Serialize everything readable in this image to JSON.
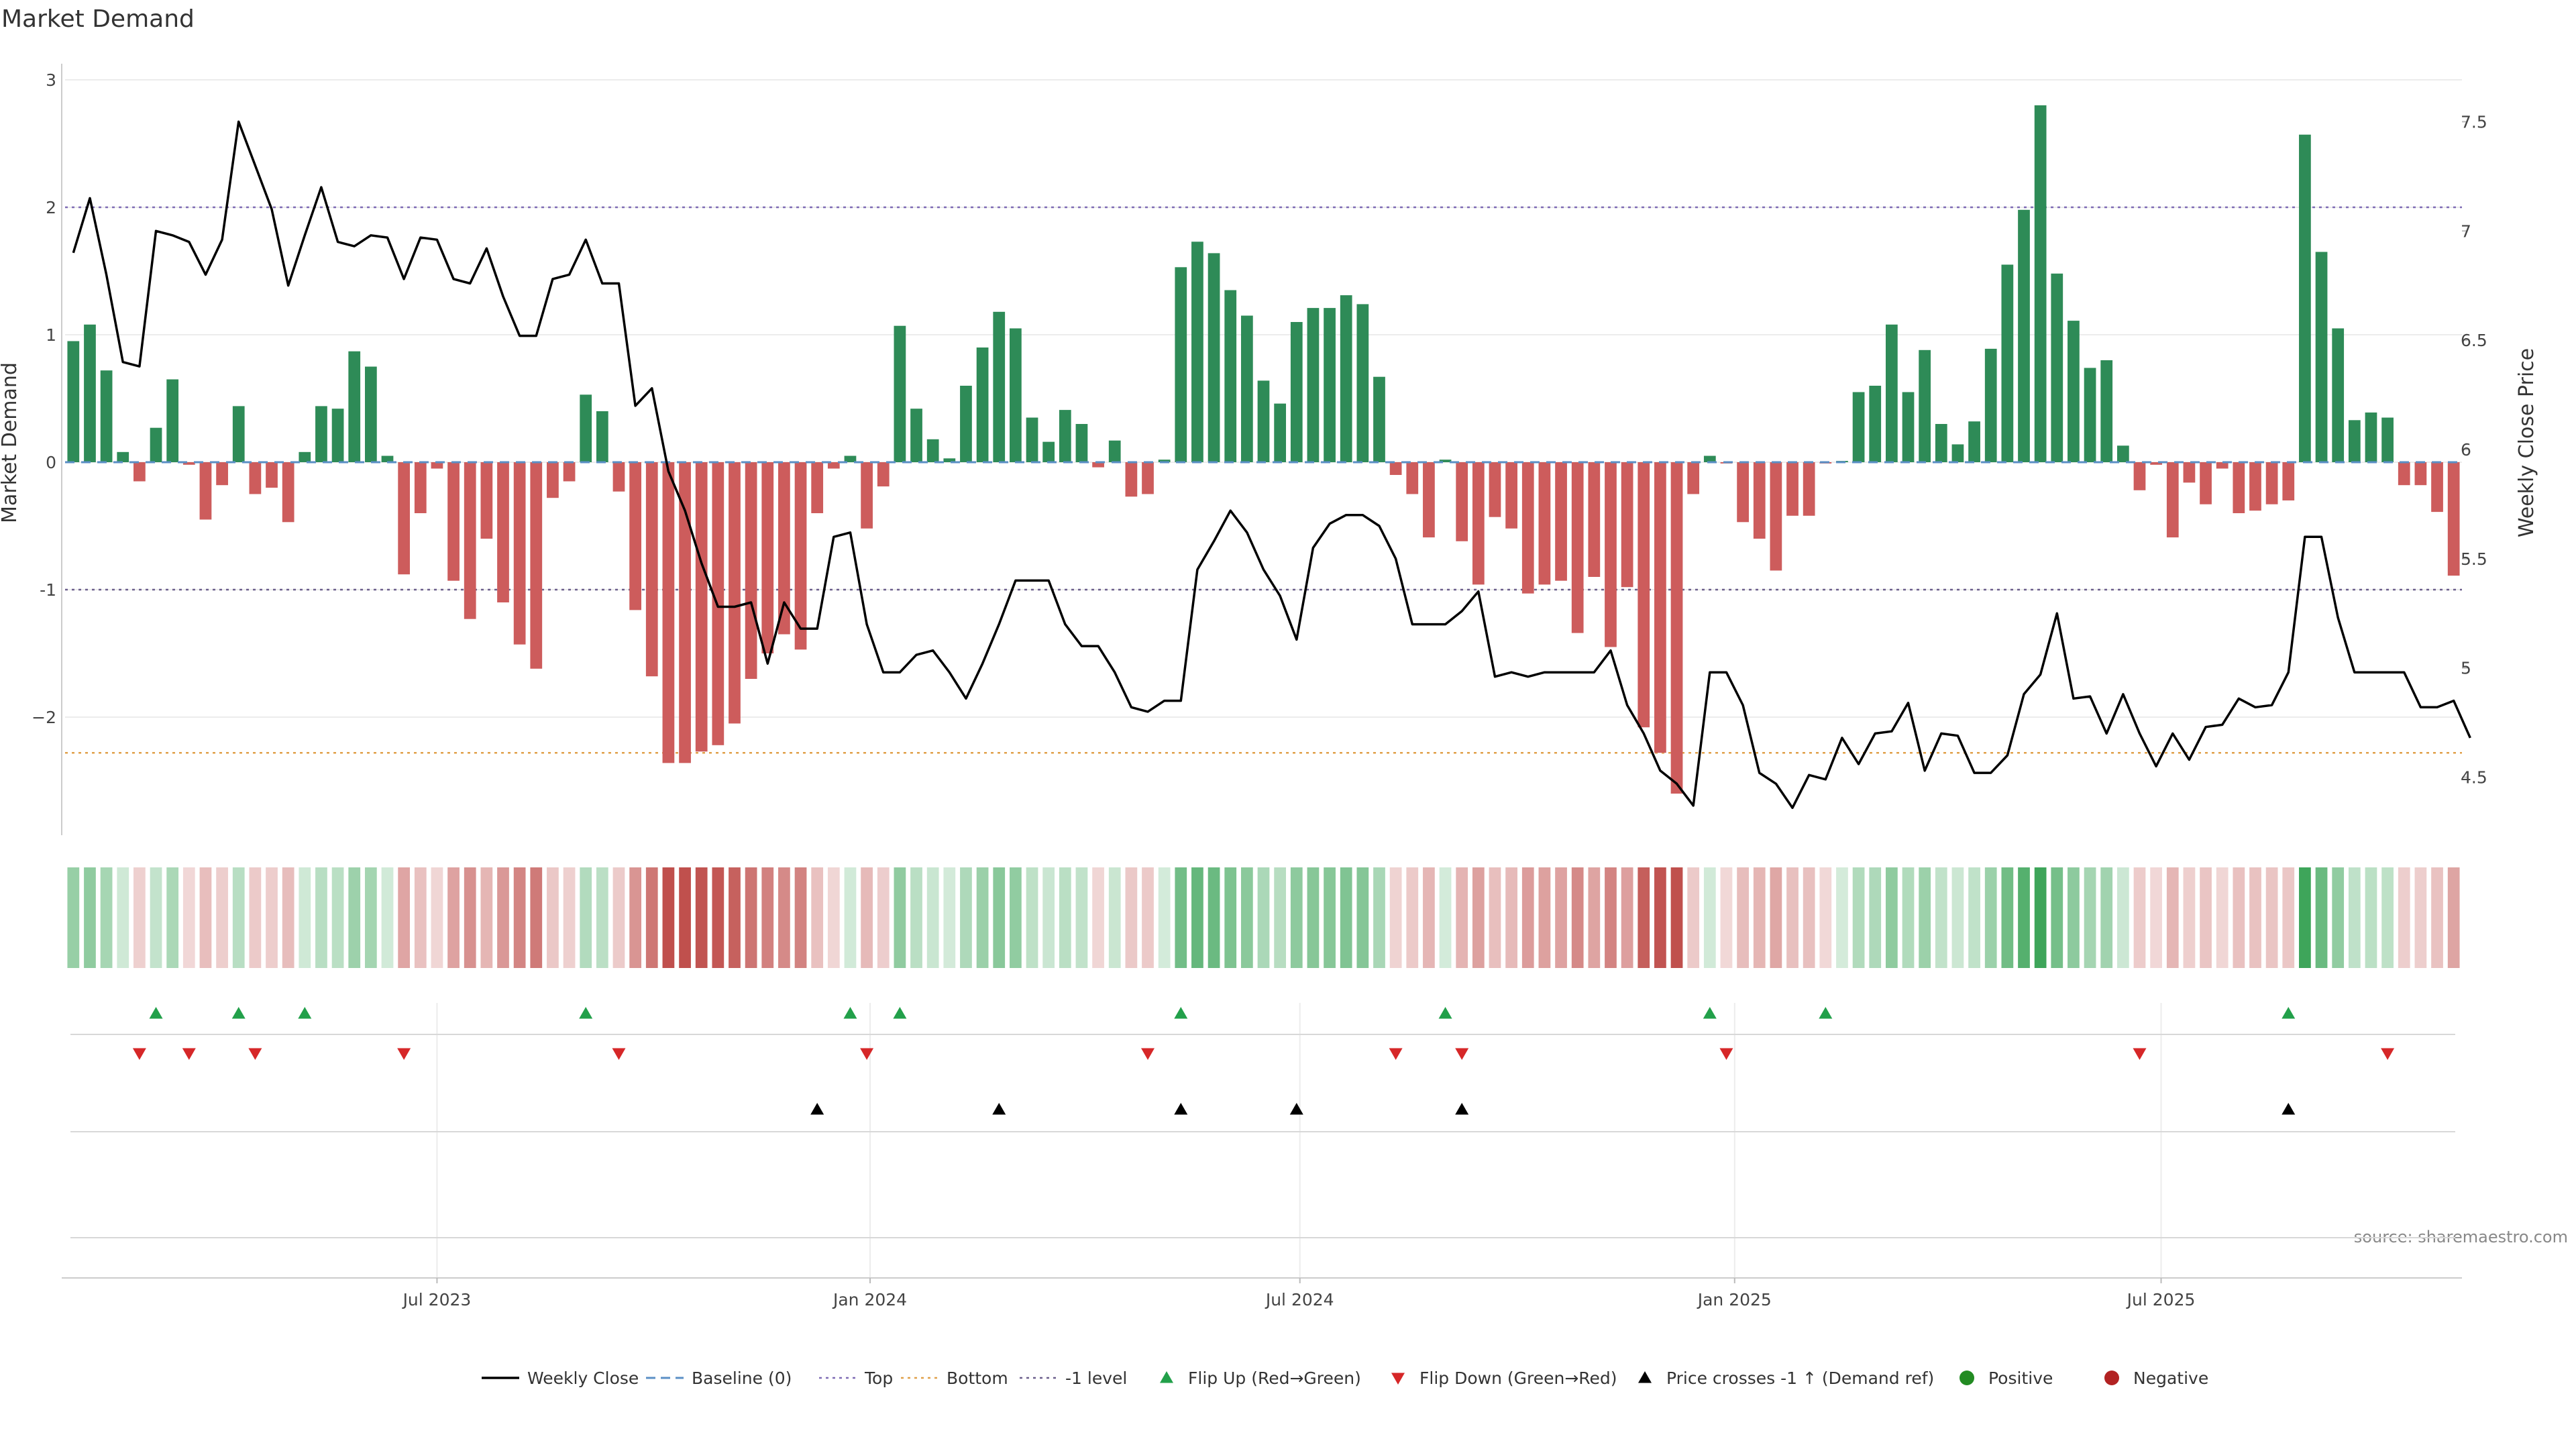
{
  "chart_data": {
    "type": "bar",
    "title": "Market Demand",
    "ylabel": "Market Demand",
    "y2label": "Weekly Close Price",
    "ylim": [
      -2.9,
      3.1
    ],
    "y2lim": [
      4.25,
      7.75
    ],
    "yticks": [
      3,
      2,
      1,
      0,
      -1,
      -2
    ],
    "ytick_labels": [
      "3",
      "2",
      "1",
      "0",
      "-1",
      "−2"
    ],
    "y2ticks": [
      7.5,
      7,
      6.5,
      6,
      5.5,
      5,
      4.5
    ],
    "y2tick_labels": [
      "7.5",
      "7",
      "6.5",
      "6",
      "5.5",
      "5",
      "4.5"
    ],
    "x_start_week_index": 0,
    "xticks": [
      {
        "label": "Jul 2023",
        "week": 22
      },
      {
        "label": "Jan 2024",
        "week": 48.2
      },
      {
        "label": "Jul 2024",
        "week": 74.2
      },
      {
        "label": "Jan 2025",
        "week": 100.5
      },
      {
        "label": "Jul 2025",
        "week": 126.3
      }
    ],
    "reference_lines": [
      {
        "name": "Top",
        "value": 2,
        "color": "#7e6bb5"
      },
      {
        "name": "-1 level",
        "value": -1,
        "color": "#6b5f8c"
      },
      {
        "name": "Bottom",
        "value": -2.28,
        "color": "#e0a04a"
      }
    ],
    "demand": [
      0.95,
      1.08,
      0.72,
      0.08,
      -0.15,
      0.27,
      0.65,
      -0.02,
      -0.45,
      -0.18,
      0.44,
      -0.25,
      -0.2,
      -0.47,
      0.08,
      0.44,
      0.42,
      0.87,
      0.75,
      0.05,
      -0.88,
      -0.4,
      -0.05,
      -0.93,
      -1.23,
      -0.6,
      -1.1,
      -1.43,
      -1.62,
      -0.28,
      -0.15,
      0.53,
      0.4,
      -0.23,
      -1.16,
      -1.68,
      -2.36,
      -2.36,
      -2.27,
      -2.22,
      -2.05,
      -1.7,
      -1.5,
      -1.35,
      -1.47,
      -0.4,
      -0.05,
      0.05,
      -0.52,
      -0.19,
      1.07,
      0.42,
      0.18,
      0.03,
      0.6,
      0.9,
      1.18,
      1.05,
      0.35,
      0.16,
      0.41,
      0.3,
      -0.04,
      0.17,
      -0.27,
      -0.25,
      0.02,
      1.53,
      1.73,
      1.64,
      1.35,
      1.15,
      0.64,
      0.46,
      1.1,
      1.21,
      1.21,
      1.31,
      1.24,
      0.67,
      -0.1,
      -0.25,
      -0.59,
      0.02,
      -0.62,
      -0.96,
      -0.43,
      -0.52,
      -1.03,
      -0.96,
      -0.93,
      -1.34,
      -0.9,
      -1.45,
      -0.98,
      -2.08,
      -2.28,
      -2.6,
      -0.25,
      0.05,
      -0.01,
      -0.47,
      -0.6,
      -0.85,
      -0.42,
      -0.42,
      -0.01,
      0.01,
      0.55,
      0.6,
      1.08,
      0.55,
      0.88,
      0.3,
      0.14,
      0.32,
      0.89,
      1.55,
      1.98,
      2.8,
      1.48,
      1.11,
      0.74,
      0.8,
      0.13,
      -0.22,
      -0.02,
      -0.59,
      -0.16,
      -0.33,
      -0.05,
      -0.4,
      -0.38,
      -0.33,
      -0.3,
      2.57,
      1.65,
      1.05,
      0.33,
      0.39,
      0.35,
      -0.18,
      -0.18,
      -0.39,
      -0.89
    ],
    "series": [
      {
        "name": "Weekly Close",
        "axis": "right",
        "color": "#000000",
        "values": [
          6.9,
          7.15,
          6.8,
          6.4,
          6.38,
          7.0,
          6.98,
          6.95,
          6.8,
          6.96,
          7.5,
          7.3,
          7.1,
          6.75,
          6.98,
          7.2,
          6.95,
          6.93,
          6.98,
          6.97,
          6.78,
          6.97,
          6.96,
          6.78,
          6.76,
          6.92,
          6.7,
          6.52,
          6.52,
          6.78,
          6.8,
          6.96,
          6.76,
          6.76,
          6.2,
          6.28,
          5.9,
          5.72,
          5.48,
          5.28,
          5.28,
          5.3,
          5.02,
          5.3,
          5.18,
          5.18,
          5.6,
          5.62,
          5.2,
          4.98,
          4.98,
          5.06,
          5.08,
          4.98,
          4.86,
          5.02,
          5.2,
          5.4,
          5.4,
          5.4,
          5.2,
          5.1,
          5.1,
          4.98,
          4.82,
          4.8,
          4.85,
          4.85,
          5.45,
          5.58,
          5.72,
          5.62,
          5.45,
          5.33,
          5.13,
          5.55,
          5.66,
          5.7,
          5.7,
          5.65,
          5.5,
          5.2,
          5.2,
          5.2,
          5.26,
          5.35,
          4.96,
          4.98,
          4.96,
          4.98,
          4.98,
          4.98,
          4.98,
          5.08,
          4.83,
          4.7,
          4.53,
          4.47,
          4.37,
          4.98,
          4.98,
          4.83,
          4.52,
          4.47,
          4.36,
          4.51,
          4.49,
          4.68,
          4.56,
          4.7,
          4.71,
          4.84,
          4.53,
          4.7,
          4.69,
          4.52,
          4.52,
          4.6,
          4.88,
          4.97,
          5.25,
          4.86,
          4.87,
          4.7,
          4.88,
          4.7,
          4.55,
          4.7,
          4.58,
          4.73,
          4.74,
          4.86,
          4.82,
          4.83,
          4.98,
          5.6,
          5.6,
          5.23,
          4.98,
          4.98,
          4.98,
          4.98,
          4.82,
          4.82,
          4.85,
          4.68
        ]
      }
    ],
    "flip_up_weeks": [
      5,
      10,
      14,
      31,
      47,
      50,
      67,
      83,
      99,
      106,
      134
    ],
    "flip_down_weeks": [
      4,
      7,
      11,
      20,
      33,
      48,
      65,
      80,
      84,
      100,
      125,
      140
    ],
    "price_cross_weeks": [
      45,
      56,
      67,
      74,
      84,
      134
    ],
    "legend": [
      {
        "label": "Weekly Close",
        "kind": "line",
        "color": "#000000"
      },
      {
        "label": "Baseline (0)",
        "kind": "dash",
        "color": "#5b8fc5"
      },
      {
        "label": "Top",
        "kind": "dot",
        "color": "#7e6bb5"
      },
      {
        "label": "Bottom",
        "kind": "dot",
        "color": "#e0a04a"
      },
      {
        "label": "-1 level",
        "kind": "dot",
        "color": "#6b5f8c"
      },
      {
        "label": "Flip Up (Red→Green)",
        "kind": "tri-up",
        "color": "#22a04a"
      },
      {
        "label": "Flip Down (Green→Red)",
        "kind": "tri-down",
        "color": "#d62728"
      },
      {
        "label": "Price crosses -1 ↑ (Demand ref)",
        "kind": "tri-up",
        "color": "#000000"
      },
      {
        "label": "Positive",
        "kind": "circle",
        "color": "#228b22"
      },
      {
        "label": "Negative",
        "kind": "circle",
        "color": "#b22222"
      }
    ],
    "source": "source: sharemaestro.com",
    "colors": {
      "positive": "#2e8b57",
      "negative": "#cd5c5c",
      "baseline": "#5b8fc5"
    }
  }
}
